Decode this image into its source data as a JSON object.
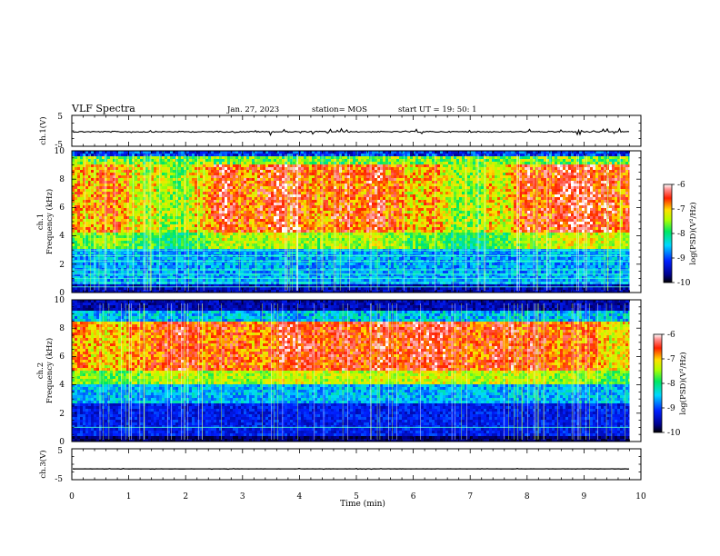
{
  "header": {
    "title": "VLF Spectra",
    "date": "Jan. 27, 2023",
    "station": "station= MOS",
    "start": "start  UT  =   19: 50: 1"
  },
  "chart_data": [
    {
      "id": "ch1-waveform",
      "type": "line",
      "ylabel": "ch.1(V)",
      "ylim": [
        -5,
        5
      ],
      "y_ticks": [
        "5",
        "-5"
      ],
      "level": -0.3
    },
    {
      "id": "ch1-spectrogram",
      "type": "heatmap",
      "ylabel_line1": "ch.1",
      "ylabel_line2": "Frequency (kHz)",
      "ylim": [
        0,
        10
      ],
      "y_ticks": [
        "0",
        "2",
        "4",
        "6",
        "8",
        "10"
      ],
      "colorbar": {
        "label": "log(PSD)(V²/Hz)",
        "range": [
          -10,
          -6
        ],
        "ticks": [
          "-6",
          "-7",
          "-8",
          "-9",
          "-10"
        ]
      },
      "band_low_khz": 0.5,
      "band_high_khz": 9.0,
      "line_freqs_khz": [
        0.4,
        0.7,
        1.0,
        1.3,
        1.6,
        2.2,
        2.6,
        3.0
      ]
    },
    {
      "id": "ch2-spectrogram",
      "type": "heatmap",
      "ylabel_line1": "ch.2",
      "ylabel_line2": "Frequency (kHz)",
      "ylim": [
        0,
        10
      ],
      "y_ticks": [
        "0",
        "2",
        "4",
        "6",
        "8",
        "10"
      ],
      "colorbar": {
        "label": "log(PSD)(V²/Hz)",
        "range": [
          -10,
          -6
        ],
        "ticks": [
          "-6",
          "-7",
          "-8",
          "-9",
          "-10"
        ]
      },
      "band_low_khz": 4.0,
      "band_high_khz": 8.5,
      "line_freqs_khz": [
        1.0
      ]
    },
    {
      "id": "ch3-waveform",
      "type": "line",
      "ylabel": "ch.3(V)",
      "ylim": [
        -5,
        5
      ],
      "y_ticks": [
        "5",
        "-5"
      ],
      "level": -1.5
    }
  ],
  "x_axis": {
    "label": "Time  (min)",
    "xlim": [
      0,
      10
    ],
    "ticks": [
      "0",
      "1",
      "2",
      "3",
      "4",
      "5",
      "6",
      "7",
      "8",
      "9",
      "10"
    ],
    "data_end_min": 9.8
  }
}
